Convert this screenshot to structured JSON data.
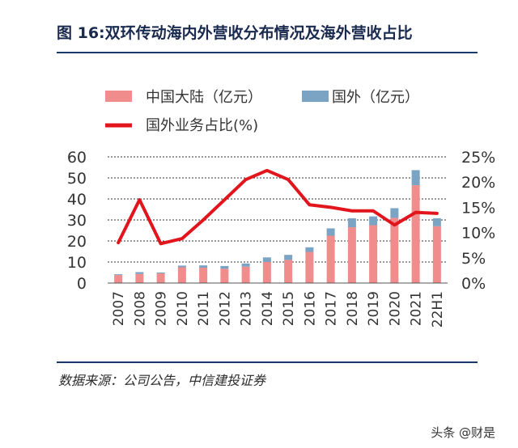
{
  "header": {
    "title": "图 16:双环传动海内外营收分布情况及海外营收占比"
  },
  "footer": {
    "source": "数据来源：公司公告，中信建投证券",
    "watermark": "头条 @财是"
  },
  "colors": {
    "domestic": "#f08c8c",
    "overseas": "#7ba4c4",
    "ratio_line": "#e2141c",
    "grid": "#333333",
    "title_text": "#1a2a4f",
    "rule": "#1a3a6c"
  },
  "chart_data": {
    "type": "bar",
    "stacked": true,
    "categories": [
      "2007",
      "2008",
      "2009",
      "2010",
      "2011",
      "2012",
      "2013",
      "2014",
      "2015",
      "2016",
      "2017",
      "2018",
      "2019",
      "2020",
      "2021",
      "22H1"
    ],
    "series": [
      {
        "name": "中国大陆（亿元）",
        "type": "bar",
        "axis": "left",
        "values": [
          3.8,
          4.3,
          4.6,
          7.5,
          7.3,
          6.8,
          7.8,
          10.0,
          11.0,
          14.8,
          22.5,
          26.5,
          27.5,
          31.0,
          46.5,
          27.0
        ]
      },
      {
        "name": "国外（亿元）",
        "type": "bar",
        "axis": "left",
        "values": [
          0.4,
          0.9,
          0.4,
          0.8,
          1.1,
          1.3,
          1.5,
          2.2,
          2.4,
          2.2,
          3.5,
          4.3,
          4.2,
          4.6,
          7.2,
          3.8
        ]
      },
      {
        "name": "国外业务占比(%)",
        "type": "line",
        "axis": "right",
        "values": [
          8,
          16.5,
          7.8,
          8.8,
          12.5,
          16.5,
          20.5,
          22.3,
          20.5,
          15.5,
          15,
          14.3,
          14.3,
          11.5,
          14,
          13.8
        ]
      }
    ],
    "y_left": {
      "ticks": [
        "0",
        "10",
        "20",
        "30",
        "40",
        "50",
        "60"
      ],
      "ylim": [
        0,
        60
      ]
    },
    "y_right": {
      "ticks": [
        "0%",
        "5%",
        "10%",
        "15%",
        "20%",
        "25%"
      ],
      "ylim": [
        0,
        25
      ]
    },
    "grid": "dashed horizontal",
    "legend": "top-left"
  }
}
